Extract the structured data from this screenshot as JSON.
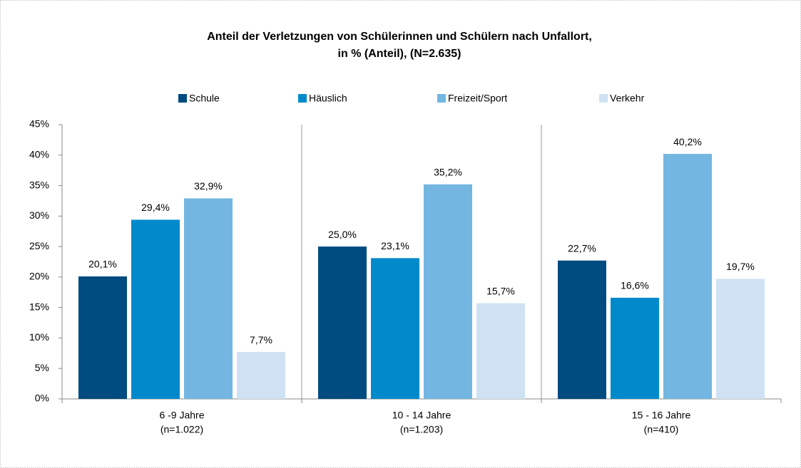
{
  "chart_data": {
    "type": "bar",
    "title": [
      "Anteil der Verletzungen von Schülerinnen und Schülern nach Unfallort,",
      "in % (Anteil), (N=2.635)"
    ],
    "categories": [
      [
        "6 -9 Jahre",
        "(n=1.022)"
      ],
      [
        "10 - 14 Jahre",
        "(n=1.203)"
      ],
      [
        "15 - 16 Jahre",
        "(n=410)"
      ]
    ],
    "series": [
      {
        "name": "Schule",
        "color": "#004b80",
        "values": [
          20.1,
          25.0,
          22.7
        ],
        "value_labels": [
          "20,1%",
          "25,0%",
          "22,7%"
        ]
      },
      {
        "name": "Häuslich",
        "color": "#008acb",
        "values": [
          29.4,
          23.1,
          16.6
        ],
        "value_labels": [
          "29,4%",
          "23,1%",
          "16,6%"
        ]
      },
      {
        "name": "Freizeit/Sport",
        "color": "#72b6e1",
        "values": [
          32.9,
          35.2,
          40.2
        ],
        "value_labels": [
          "32,9%",
          "35,2%",
          "40,2%"
        ]
      },
      {
        "name": "Verkehr",
        "color": "#cfe2f3",
        "values": [
          7.7,
          15.7,
          19.7
        ],
        "value_labels": [
          "7,7%",
          "15,7%",
          "19,7%"
        ]
      }
    ],
    "ylim": [
      0,
      45
    ],
    "yticks": [
      {
        "value": 0,
        "label": "0%"
      },
      {
        "value": 5,
        "label": "5%"
      },
      {
        "value": 10,
        "label": "10%"
      },
      {
        "value": 15,
        "label": "15%"
      },
      {
        "value": 20,
        "label": "20%"
      },
      {
        "value": 25,
        "label": "25%"
      },
      {
        "value": 30,
        "label": "30%"
      },
      {
        "value": 35,
        "label": "35%"
      },
      {
        "value": 40,
        "label": "40%"
      },
      {
        "value": 45,
        "label": "45%"
      }
    ],
    "legend": "top"
  }
}
